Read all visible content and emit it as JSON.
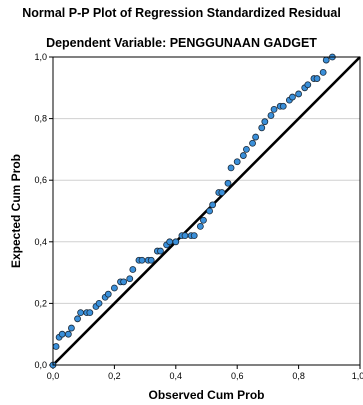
{
  "chart_data": {
    "type": "scatter",
    "title": "Normal P-P Plot of Regression Standardized Residual",
    "subtitle": "Dependent Variable: PENGGUNAAN GADGET",
    "xlabel": "Observed Cum Prob",
    "ylabel": "Expected Cum Prob",
    "xlim": [
      0,
      1
    ],
    "ylim": [
      0,
      1
    ],
    "xticks": [
      "0,0",
      "0,2",
      "0,4",
      "0,6",
      "0,8",
      "1,0"
    ],
    "yticks": [
      "0,0",
      "0,2",
      "0,4",
      "0,6",
      "0,8",
      "1,0"
    ],
    "grid": "horizontal",
    "reference_line": [
      [
        0,
        0
      ],
      [
        1,
        1
      ]
    ],
    "colors": {
      "point_fill": "#3a8fd9",
      "point_stroke": "#1a2a3a",
      "line": "#000000",
      "grid": "#d0d0d0"
    },
    "points": [
      [
        0.0,
        0.0
      ],
      [
        0.01,
        0.06
      ],
      [
        0.02,
        0.09
      ],
      [
        0.03,
        0.1
      ],
      [
        0.05,
        0.1
      ],
      [
        0.06,
        0.12
      ],
      [
        0.08,
        0.15
      ],
      [
        0.09,
        0.17
      ],
      [
        0.11,
        0.17
      ],
      [
        0.12,
        0.17
      ],
      [
        0.14,
        0.19
      ],
      [
        0.15,
        0.2
      ],
      [
        0.17,
        0.22
      ],
      [
        0.18,
        0.23
      ],
      [
        0.2,
        0.25
      ],
      [
        0.22,
        0.27
      ],
      [
        0.23,
        0.27
      ],
      [
        0.25,
        0.28
      ],
      [
        0.26,
        0.31
      ],
      [
        0.28,
        0.34
      ],
      [
        0.29,
        0.34
      ],
      [
        0.31,
        0.34
      ],
      [
        0.32,
        0.34
      ],
      [
        0.34,
        0.37
      ],
      [
        0.35,
        0.37
      ],
      [
        0.37,
        0.39
      ],
      [
        0.38,
        0.4
      ],
      [
        0.4,
        0.4
      ],
      [
        0.42,
        0.42
      ],
      [
        0.43,
        0.42
      ],
      [
        0.45,
        0.42
      ],
      [
        0.46,
        0.42
      ],
      [
        0.48,
        0.45
      ],
      [
        0.49,
        0.47
      ],
      [
        0.51,
        0.5
      ],
      [
        0.52,
        0.52
      ],
      [
        0.54,
        0.56
      ],
      [
        0.55,
        0.56
      ],
      [
        0.57,
        0.59
      ],
      [
        0.58,
        0.64
      ],
      [
        0.6,
        0.66
      ],
      [
        0.62,
        0.68
      ],
      [
        0.63,
        0.7
      ],
      [
        0.65,
        0.72
      ],
      [
        0.66,
        0.74
      ],
      [
        0.68,
        0.77
      ],
      [
        0.69,
        0.79
      ],
      [
        0.71,
        0.81
      ],
      [
        0.72,
        0.83
      ],
      [
        0.74,
        0.84
      ],
      [
        0.75,
        0.84
      ],
      [
        0.77,
        0.86
      ],
      [
        0.78,
        0.87
      ],
      [
        0.8,
        0.88
      ],
      [
        0.82,
        0.9
      ],
      [
        0.83,
        0.91
      ],
      [
        0.85,
        0.93
      ],
      [
        0.86,
        0.93
      ],
      [
        0.88,
        0.95
      ],
      [
        0.89,
        0.99
      ],
      [
        0.91,
        1.0
      ]
    ]
  }
}
